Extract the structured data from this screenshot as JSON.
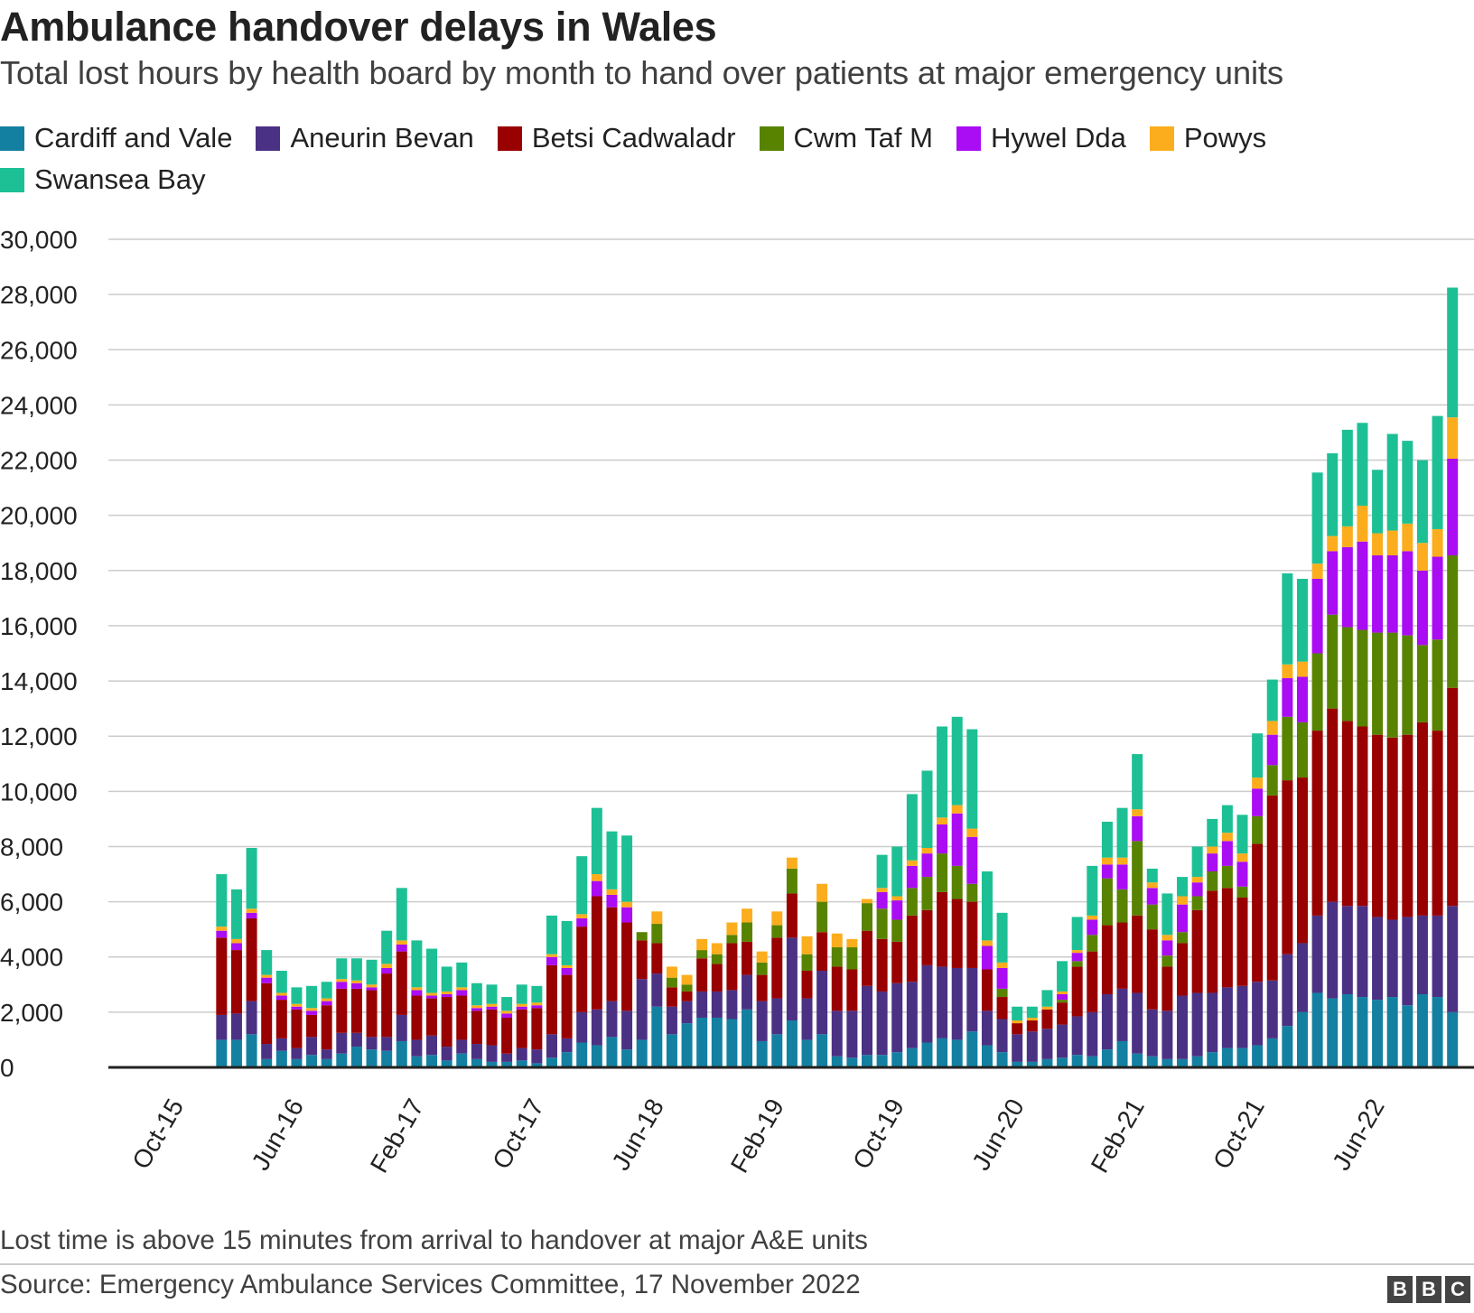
{
  "chart_data": {
    "type": "bar",
    "stacked": true,
    "title": "Ambulance handover delays in Wales",
    "subtitle": "Total lost hours by health board by month to hand over patients at major emergency units",
    "xlabel": "",
    "ylabel": "",
    "ylim": [
      0,
      30000
    ],
    "yticks": [
      0,
      2000,
      4000,
      6000,
      8000,
      10000,
      12000,
      14000,
      16000,
      18000,
      20000,
      22000,
      24000,
      26000,
      28000,
      30000
    ],
    "ytick_labels": [
      "0",
      "2,000",
      "4,000",
      "6,000",
      "8,000",
      "10,000",
      "12,000",
      "14,000",
      "16,000",
      "18,000",
      "20,000",
      "22,000",
      "24,000",
      "26,000",
      "28,000",
      "30,000"
    ],
    "xtick_labels": [
      "Oct-15",
      "Jun-16",
      "Feb-17",
      "Oct-17",
      "Jun-18",
      "Feb-19",
      "Oct-19",
      "Jun-20",
      "Feb-21",
      "Oct-21",
      "Jun-22"
    ],
    "xticks_month_index": [
      0,
      8,
      16,
      24,
      32,
      40,
      48,
      56,
      64,
      72,
      80
    ],
    "first_month": "Oct-15",
    "bars_start_month_index": 7,
    "grid": true,
    "legend_position": "top",
    "series": [
      {
        "name": "Cardiff and Vale",
        "color": "#1380a1",
        "values": [
          1000,
          1000,
          1200,
          300,
          600,
          300,
          450,
          300,
          500,
          750,
          650,
          600,
          950,
          400,
          450,
          250,
          500,
          300,
          200,
          200,
          250,
          150,
          350,
          550,
          900,
          800,
          1100,
          650,
          1000,
          2200,
          1200,
          1600,
          1800,
          1800,
          1750,
          2100,
          950,
          1200,
          1700,
          1000,
          1200,
          400,
          350,
          450,
          450,
          550,
          700,
          900,
          1050,
          1000,
          1300,
          800,
          550,
          200,
          200,
          300,
          350,
          450,
          400,
          650,
          950,
          500,
          400,
          300,
          300,
          400,
          550,
          700,
          700,
          800,
          1050,
          1500,
          2000,
          2700,
          2500,
          2650,
          2550,
          2450,
          2550,
          2250,
          2650,
          2550,
          2000
        ]
      },
      {
        "name": "Aneurin Bevan",
        "color": "#4b3184",
        "values": [
          900,
          950,
          1200,
          550,
          450,
          400,
          650,
          350,
          750,
          500,
          450,
          500,
          950,
          600,
          700,
          500,
          500,
          550,
          600,
          300,
          450,
          500,
          850,
          500,
          1100,
          1300,
          1300,
          1400,
          2200,
          1200,
          1000,
          800,
          950,
          950,
          1050,
          1250,
          1450,
          1300,
          3000,
          1500,
          2300,
          1650,
          1700,
          2500,
          2300,
          2500,
          2400,
          2800,
          2600,
          2600,
          2300,
          1250,
          1200,
          1000,
          1100,
          1100,
          1200,
          1400,
          1600,
          2000,
          1900,
          2200,
          1700,
          1750,
          2300,
          2300,
          2150,
          2200,
          2250,
          2300,
          2100,
          2600,
          2500,
          2800,
          3500,
          3200,
          3300,
          3000,
          2800,
          3200,
          2850,
          2950,
          3850
        ]
      },
      {
        "name": "Betsi Cadwaladr",
        "color": "#990000",
        "values": [
          2800,
          2300,
          3000,
          2200,
          1400,
          1400,
          800,
          1600,
          1600,
          1600,
          1700,
          2300,
          2300,
          1600,
          1350,
          1800,
          1600,
          1200,
          1300,
          1300,
          1400,
          1500,
          2500,
          2300,
          3100,
          4100,
          3400,
          3200,
          1400,
          1100,
          700,
          350,
          1200,
          1000,
          1700,
          1200,
          950,
          2200,
          1600,
          1000,
          1400,
          1600,
          1500,
          2000,
          1900,
          1500,
          2400,
          2000,
          2700,
          2500,
          2400,
          1500,
          800,
          400,
          400,
          700,
          800,
          1800,
          2200,
          2500,
          2400,
          2800,
          2900,
          1600,
          1900,
          3000,
          3700,
          3600,
          3200,
          5000,
          6700,
          6300,
          6000,
          6700,
          7000,
          6700,
          6500,
          6600,
          6600,
          6600,
          7000,
          6700,
          7900
        ]
      },
      {
        "name": "Cwm Taf M",
        "color": "#588300",
        "values": [
          0,
          0,
          0,
          0,
          0,
          0,
          0,
          0,
          0,
          0,
          0,
          0,
          0,
          0,
          0,
          0,
          0,
          0,
          0,
          0,
          0,
          0,
          0,
          0,
          0,
          0,
          0,
          0,
          300,
          700,
          350,
          250,
          300,
          350,
          300,
          700,
          450,
          450,
          900,
          600,
          1100,
          700,
          800,
          1000,
          1100,
          800,
          1000,
          1200,
          1400,
          1200,
          650,
          0,
          300,
          0,
          0,
          0,
          100,
          200,
          600,
          1700,
          1200,
          2700,
          900,
          400,
          400,
          500,
          700,
          800,
          400,
          1000,
          1100,
          2300,
          2000,
          2800,
          3400,
          3400,
          3500,
          3700,
          3800,
          3600,
          2800,
          3300,
          4800
        ]
      },
      {
        "name": "Hywel Dda",
        "color": "#aa0cf4",
        "values": [
          250,
          250,
          200,
          200,
          150,
          100,
          150,
          150,
          250,
          200,
          100,
          200,
          250,
          200,
          100,
          100,
          200,
          100,
          100,
          150,
          100,
          100,
          300,
          250,
          300,
          550,
          450,
          550,
          0,
          0,
          0,
          0,
          0,
          0,
          0,
          0,
          0,
          0,
          0,
          0,
          0,
          0,
          0,
          0,
          600,
          700,
          800,
          850,
          1050,
          1900,
          1700,
          850,
          750,
          0,
          0,
          0,
          200,
          300,
          550,
          500,
          900,
          900,
          600,
          550,
          1000,
          500,
          650,
          900,
          900,
          1000,
          1100,
          1400,
          1650,
          2700,
          2300,
          2900,
          3200,
          2800,
          2800,
          3050,
          2700,
          3000,
          3500
        ]
      },
      {
        "name": "Powys",
        "color": "#fcad1d",
        "values": [
          150,
          150,
          150,
          100,
          100,
          100,
          100,
          100,
          100,
          100,
          100,
          150,
          150,
          100,
          100,
          100,
          100,
          100,
          100,
          100,
          100,
          100,
          100,
          100,
          150,
          250,
          200,
          200,
          0,
          450,
          400,
          350,
          400,
          400,
          450,
          500,
          400,
          500,
          400,
          650,
          650,
          500,
          300,
          150,
          150,
          150,
          200,
          200,
          250,
          300,
          300,
          200,
          200,
          100,
          100,
          100,
          100,
          100,
          150,
          250,
          250,
          250,
          200,
          200,
          300,
          200,
          250,
          300,
          300,
          400,
          500,
          500,
          550,
          550,
          550,
          750,
          1300,
          800,
          900,
          1000,
          1000,
          1000,
          1500
        ]
      },
      {
        "name": "Swansea Bay",
        "color": "#1dc095",
        "values": [
          1900,
          1800,
          2200,
          900,
          800,
          600,
          800,
          600,
          750,
          800,
          900,
          1200,
          1900,
          1700,
          1600,
          900,
          900,
          800,
          700,
          500,
          700,
          600,
          1400,
          1600,
          2100,
          2400,
          2100,
          2400,
          0,
          0,
          0,
          0,
          0,
          0,
          0,
          0,
          0,
          0,
          0,
          0,
          0,
          0,
          0,
          0,
          1200,
          1800,
          2400,
          2800,
          3300,
          3200,
          3600,
          2500,
          1800,
          500,
          400,
          600,
          1100,
          1200,
          1800,
          1300,
          1800,
          2000,
          500,
          1500,
          700,
          1100,
          1000,
          1000,
          1400,
          1600,
          1500,
          3300,
          3000,
          3300,
          3000,
          3500,
          3000,
          2300,
          3500,
          3000,
          3000,
          4100,
          4700
        ]
      }
    ]
  },
  "footnote": "Lost time is above 15 minutes from arrival to handover at major A&E units",
  "source": "Source: Emergency Ambulance Services Committee, 17 November 2022",
  "brand": {
    "b1": "B",
    "b2": "B",
    "b3": "C"
  }
}
